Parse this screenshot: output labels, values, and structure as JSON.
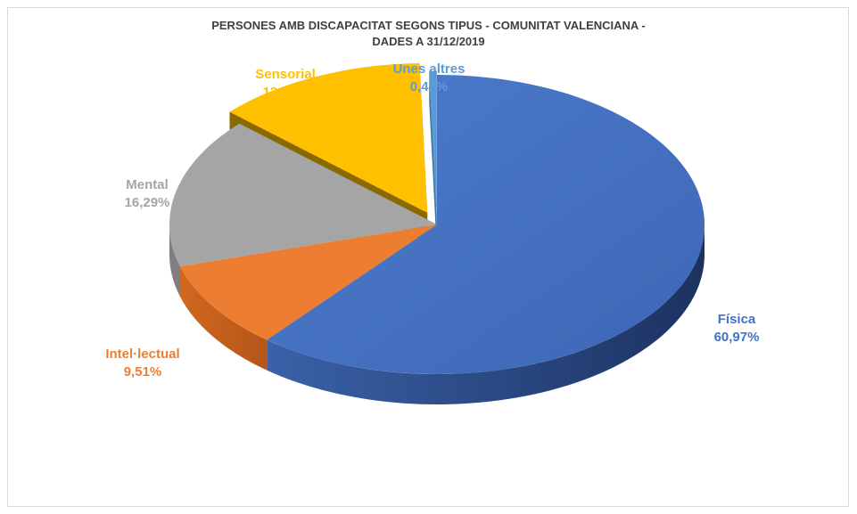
{
  "chart_data": {
    "type": "pie",
    "title": "PERSONES AMB DISCAPACITAT SEGONS TIPUS - COMUNITAT VALENCIANA -",
    "subtitle": "DADES A 31/12/2019",
    "slices": [
      {
        "label": "Física",
        "value": 60.97,
        "value_label": "60,97%",
        "color": "#4472c4"
      },
      {
        "label": "Intel·lectual",
        "value": 9.51,
        "value_label": "9,51%",
        "color": "#ed7d31"
      },
      {
        "label": "Mental",
        "value": 16.29,
        "value_label": "16,29%",
        "color": "#a5a5a5"
      },
      {
        "label": "Sensorial",
        "value": 12.77,
        "value_label": "12,77%",
        "color": "#ffc000"
      },
      {
        "label": "Unes altres",
        "value": 0.46,
        "value_label": "0,46%",
        "color": "#5b9bd5"
      }
    ],
    "style": "3d-exploded",
    "legend": "none"
  }
}
